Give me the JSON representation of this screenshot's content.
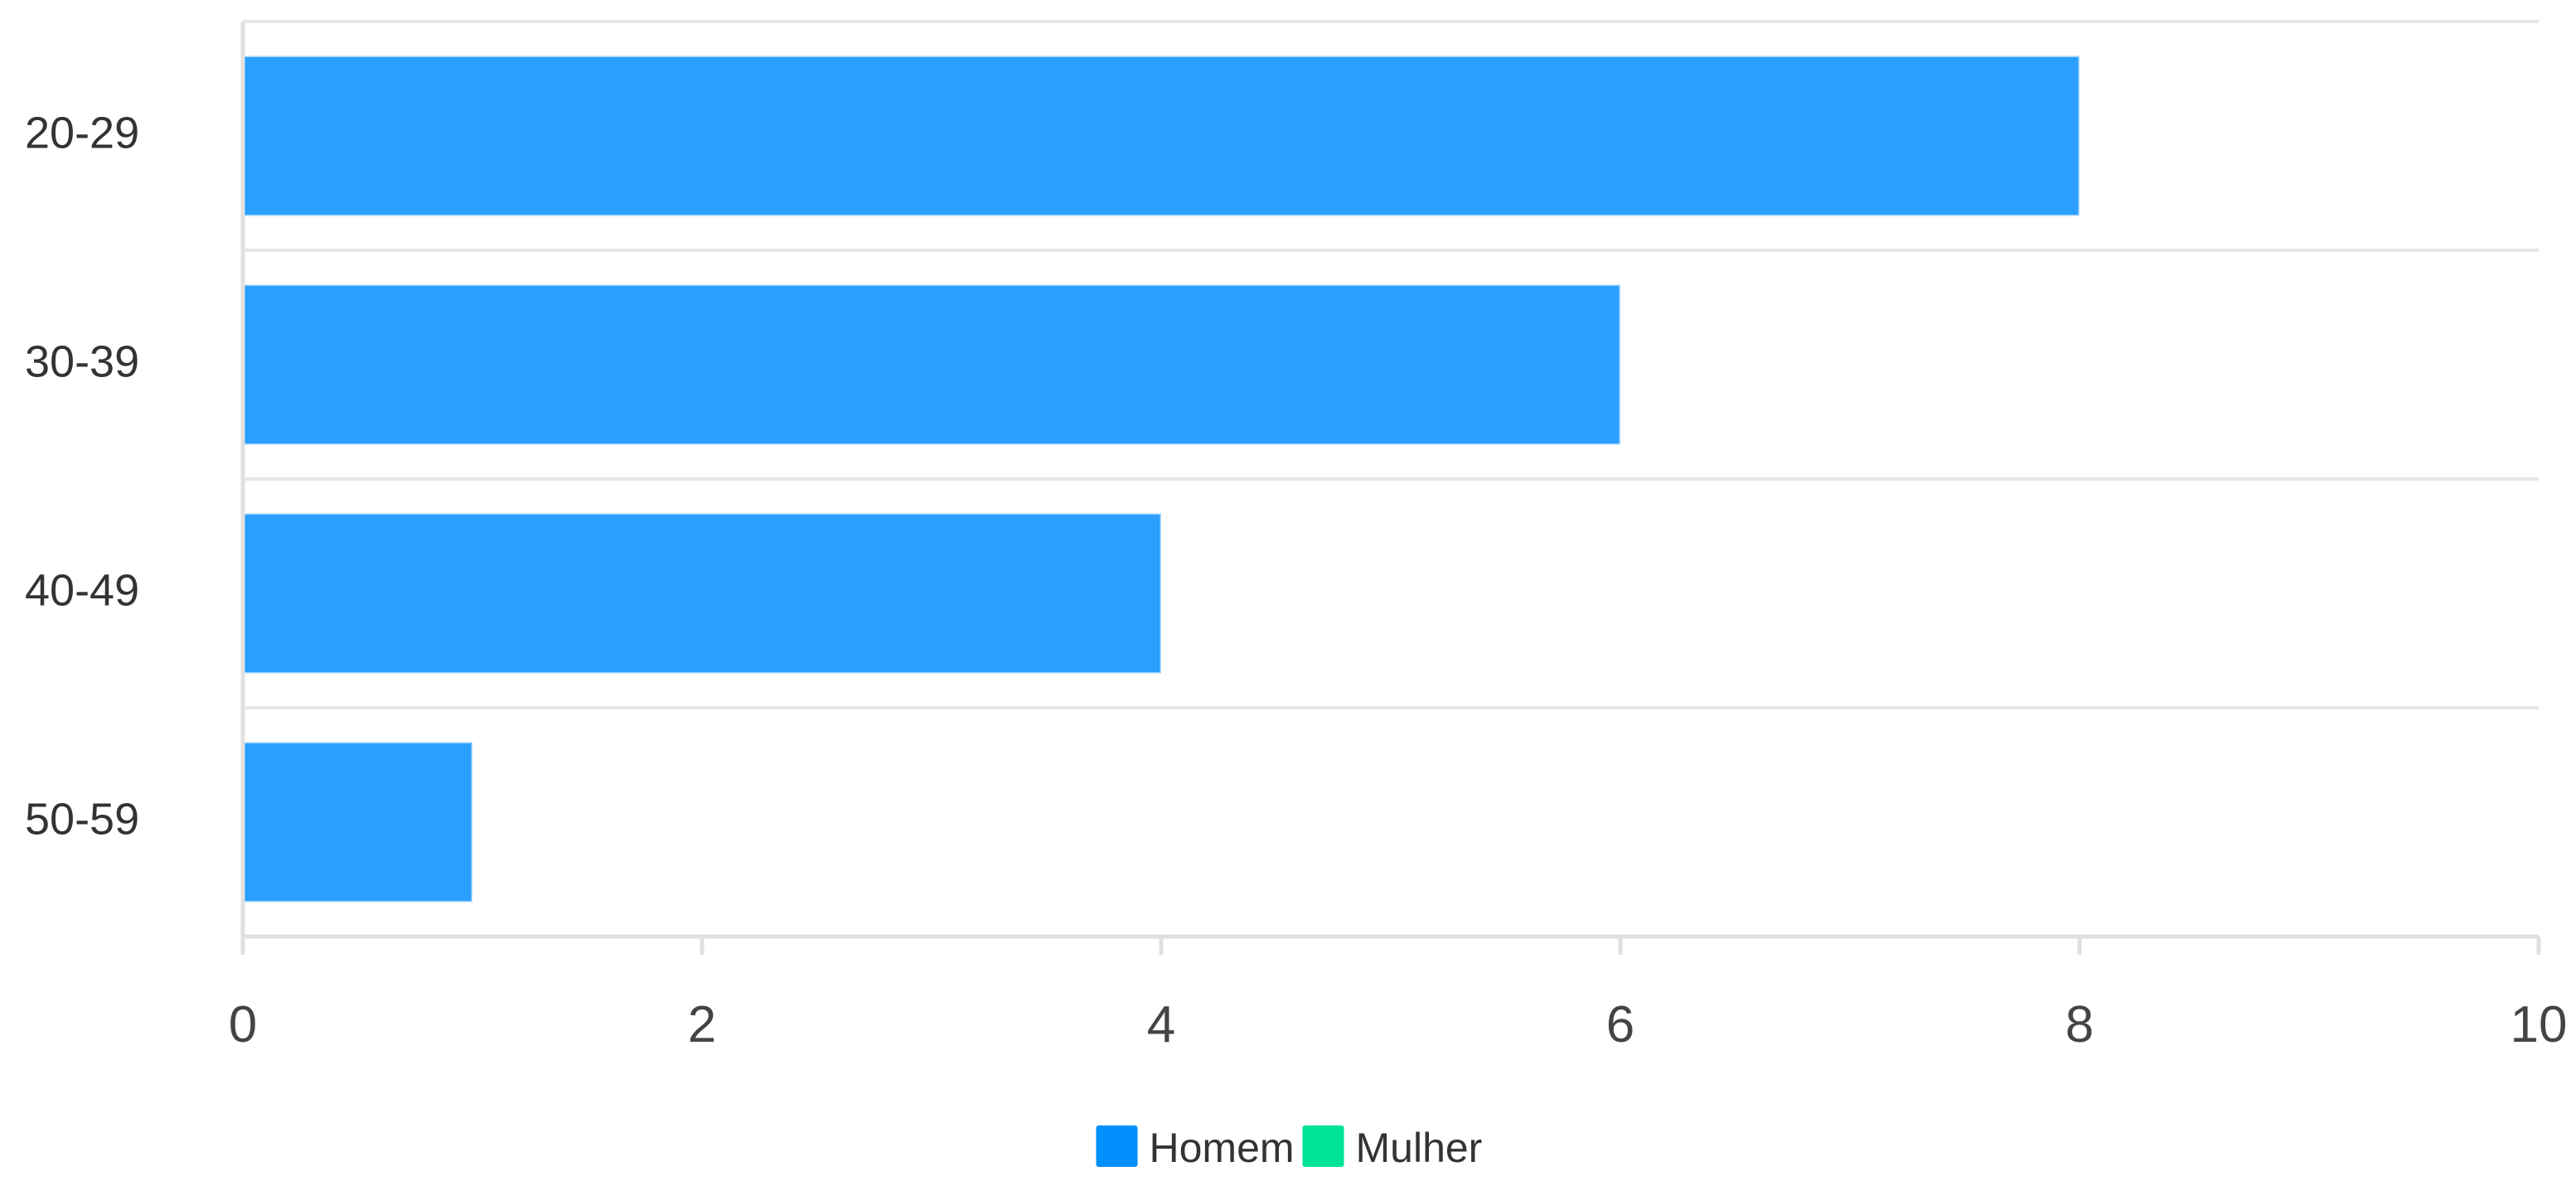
{
  "chart_data": {
    "type": "bar",
    "orientation": "horizontal",
    "stacked": false,
    "categories": [
      "20-29",
      "30-39",
      "40-49",
      "50-59"
    ],
    "series": [
      {
        "name": "Homem",
        "color": "#2b9ffd",
        "legend_color": "#008ffb",
        "values": [
          8,
          6,
          4,
          1
        ]
      },
      {
        "name": "Mulher",
        "color": "#00e396",
        "legend_color": "#00e396",
        "values": [
          0,
          0,
          0,
          0
        ]
      }
    ],
    "x_ticks": [
      "0",
      "2",
      "4",
      "6",
      "8",
      "10"
    ],
    "xlim": [
      0,
      10
    ],
    "grid": true,
    "legend_position": "bottom-center",
    "title": "",
    "xlabel": "",
    "ylabel": ""
  }
}
